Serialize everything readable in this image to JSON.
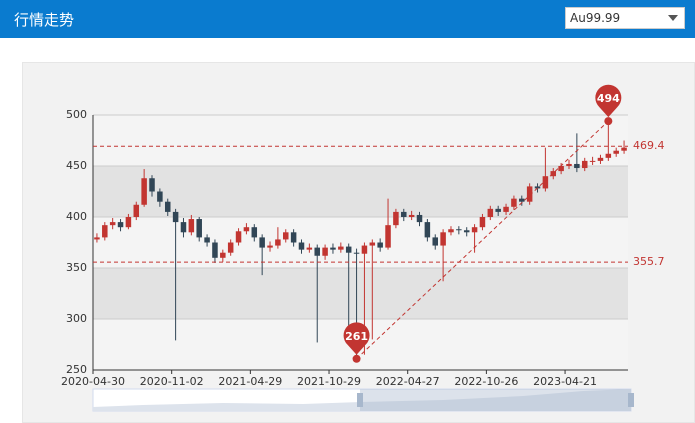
{
  "header": {
    "title": "行情走势",
    "select": "Au99.99"
  },
  "chart_data": {
    "type": "candlestick",
    "categories": [
      "2020-04-30",
      null,
      null,
      null,
      null,
      null,
      null,
      null,
      null,
      null,
      "2020-11-02",
      null,
      null,
      null,
      null,
      null,
      null,
      null,
      null,
      null,
      "2021-04-29",
      null,
      null,
      null,
      null,
      null,
      null,
      null,
      null,
      null,
      "2021-10-29",
      null,
      null,
      null,
      null,
      null,
      null,
      null,
      null,
      null,
      "2022-04-27",
      null,
      null,
      null,
      null,
      null,
      null,
      null,
      null,
      null,
      "2022-10-26",
      null,
      null,
      null,
      null,
      null,
      null,
      null,
      null,
      null,
      "2023-04-21",
      null,
      null,
      null,
      null,
      null,
      null,
      null
    ],
    "values": [
      [
        378,
        380,
        375,
        384
      ],
      [
        380,
        392,
        377,
        395
      ],
      [
        392,
        395,
        388,
        399
      ],
      [
        395,
        390,
        386,
        398
      ],
      [
        390,
        400,
        388,
        403
      ],
      [
        400,
        412,
        397,
        415
      ],
      [
        412,
        438,
        410,
        447
      ],
      [
        438,
        425,
        420,
        441
      ],
      [
        425,
        415,
        410,
        428
      ],
      [
        415,
        405,
        401,
        418
      ],
      [
        405,
        395,
        279,
        408
      ],
      [
        395,
        385,
        380,
        399
      ],
      [
        385,
        398,
        382,
        402
      ],
      [
        398,
        380,
        376,
        400
      ],
      [
        380,
        375,
        371,
        383
      ],
      [
        375,
        360,
        355,
        378
      ],
      [
        360,
        365,
        356,
        368
      ],
      [
        365,
        375,
        362,
        378
      ],
      [
        375,
        386,
        372,
        389
      ],
      [
        386,
        390,
        383,
        394
      ],
      [
        390,
        380,
        376,
        393
      ],
      [
        380,
        370,
        343,
        383
      ],
      [
        370,
        372,
        366,
        376
      ],
      [
        372,
        378,
        369,
        390
      ],
      [
        378,
        385,
        375,
        388
      ],
      [
        385,
        375,
        371,
        388
      ],
      [
        375,
        368,
        364,
        378
      ],
      [
        368,
        370,
        365,
        374
      ],
      [
        370,
        362,
        277,
        373
      ],
      [
        362,
        370,
        358,
        373
      ],
      [
        370,
        368,
        364,
        374
      ],
      [
        368,
        371,
        365,
        375
      ],
      [
        371,
        365,
        290,
        374
      ],
      [
        365,
        364,
        261,
        369
      ],
      [
        364,
        372,
        265,
        375
      ],
      [
        372,
        375,
        280,
        378
      ],
      [
        375,
        370,
        366,
        379
      ],
      [
        370,
        392,
        368,
        418
      ],
      [
        392,
        405,
        389,
        408
      ],
      [
        405,
        400,
        396,
        408
      ],
      [
        400,
        402,
        397,
        406
      ],
      [
        402,
        395,
        391,
        405
      ],
      [
        395,
        380,
        376,
        398
      ],
      [
        380,
        372,
        368,
        383
      ],
      [
        372,
        385,
        337,
        388
      ],
      [
        385,
        388,
        382,
        391
      ],
      [
        388,
        387,
        383,
        391
      ],
      [
        387,
        385,
        381,
        390
      ],
      [
        385,
        390,
        365,
        393
      ],
      [
        390,
        400,
        387,
        403
      ],
      [
        400,
        408,
        397,
        411
      ],
      [
        408,
        405,
        401,
        411
      ],
      [
        405,
        410,
        402,
        413
      ],
      [
        410,
        418,
        407,
        421
      ],
      [
        418,
        415,
        411,
        421
      ],
      [
        415,
        430,
        412,
        433
      ],
      [
        430,
        428,
        424,
        433
      ],
      [
        428,
        440,
        425,
        468
      ],
      [
        440,
        445,
        437,
        448
      ],
      [
        445,
        450,
        442,
        453
      ],
      [
        450,
        452,
        447,
        456
      ],
      [
        452,
        448,
        444,
        482
      ],
      [
        448,
        455,
        445,
        458
      ],
      [
        455,
        455,
        451,
        459
      ],
      [
        455,
        458,
        452,
        461
      ],
      [
        458,
        462,
        455,
        494
      ],
      [
        462,
        465,
        459,
        468
      ],
      [
        465,
        468,
        462,
        475
      ]
    ],
    "up_color": "#c23531",
    "down_color": "#314656",
    "ylim": [
      250,
      500
    ],
    "yticks": [
      250,
      300,
      350,
      400,
      450,
      500
    ],
    "split_area": true,
    "mark_lines": [
      469.4,
      355.7
    ],
    "mark_point_max": 494,
    "mark_point_min": 261
  }
}
